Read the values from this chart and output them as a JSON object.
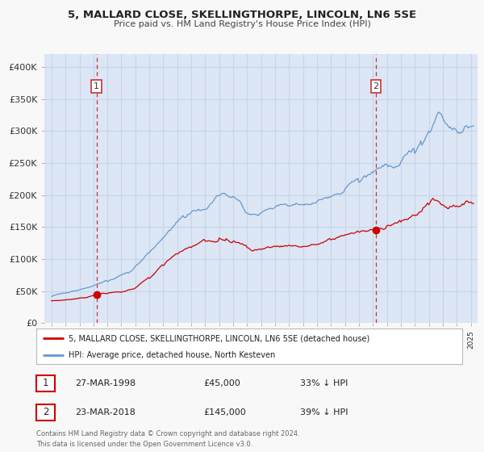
{
  "title": "5, MALLARD CLOSE, SKELLINGTHORPE, LINCOLN, LN6 5SE",
  "subtitle": "Price paid vs. HM Land Registry's House Price Index (HPI)",
  "legend_line1": "5, MALLARD CLOSE, SKELLINGTHORPE, LINCOLN, LN6 5SE (detached house)",
  "legend_line2": "HPI: Average price, detached house, North Kesteven",
  "sale1_date": "27-MAR-1998",
  "sale1_price": "£45,000",
  "sale1_hpi": "33% ↓ HPI",
  "sale1_year": 1998.22,
  "sale1_value": 45000,
  "sale2_date": "23-MAR-2018",
  "sale2_price": "£145,000",
  "sale2_hpi": "39% ↓ HPI",
  "sale2_year": 2018.22,
  "sale2_value": 145000,
  "red_color": "#cc0000",
  "blue_color": "#6699cc",
  "dashed_color": "#cc3333",
  "background_color": "#f8f8f8",
  "plot_bg_color": "#dce6f5",
  "grid_color": "#c8d4e8",
  "footnote": "Contains HM Land Registry data © Crown copyright and database right 2024.\nThis data is licensed under the Open Government Licence v3.0.",
  "ylim_max": 420000,
  "xlim_min": 1994.5,
  "xlim_max": 2025.5,
  "yticks": [
    0,
    50000,
    100000,
    150000,
    200000,
    250000,
    300000,
    350000,
    400000
  ],
  "ylabels": [
    "£0",
    "£50K",
    "£100K",
    "£150K",
    "£200K",
    "£250K",
    "£300K",
    "£350K",
    "£400K"
  ]
}
